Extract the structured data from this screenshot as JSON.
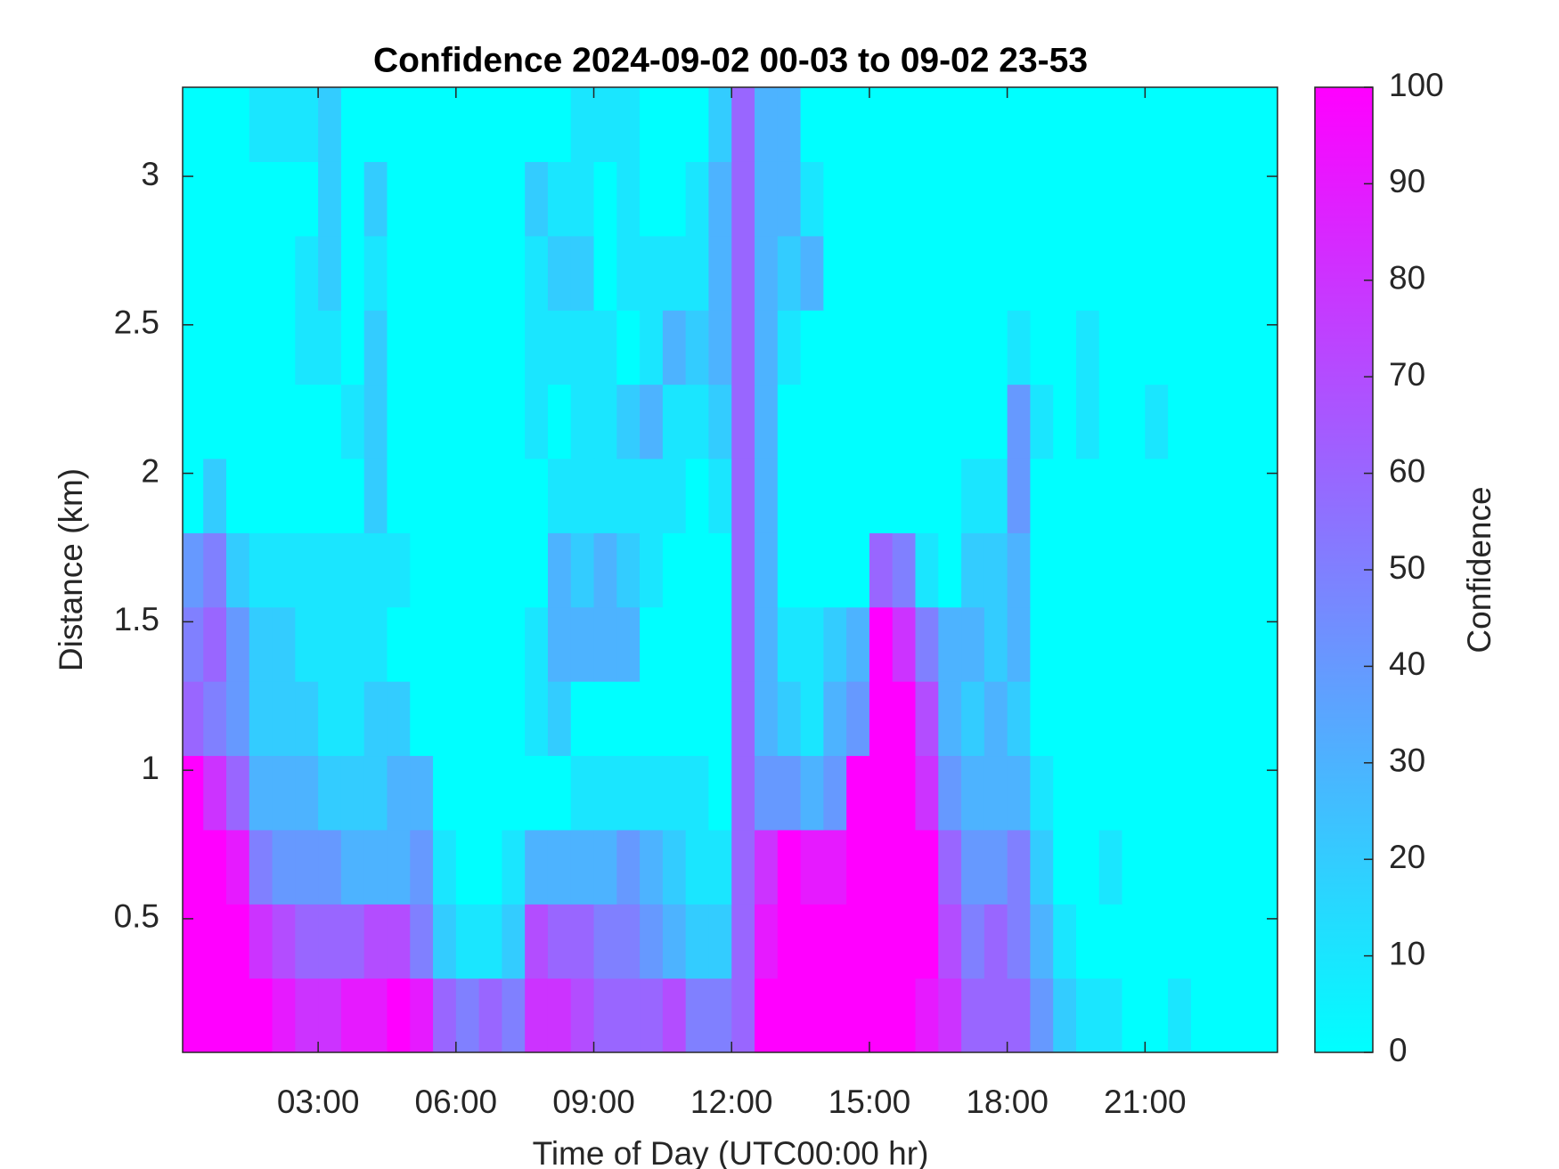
{
  "chart_data": {
    "type": "heatmap",
    "title": "Confidence 2024-09-02 00-03 to 09-02 23-53",
    "x_label": "Time of Day (UTC00:00 hr)",
    "y_label": "Distance (km)",
    "colorbar_label": "Confidence",
    "colormap": [
      "#00ffff",
      "#ff00ff"
    ],
    "clim": [
      0,
      100
    ],
    "cticks": [
      0,
      10,
      20,
      30,
      40,
      50,
      60,
      70,
      80,
      90,
      100
    ],
    "xlim": [
      0.05,
      23.883
    ],
    "ylim": [
      0.05,
      3.3
    ],
    "xticks": [
      {
        "value": 3,
        "label": "03:00"
      },
      {
        "value": 6,
        "label": "06:00"
      },
      {
        "value": 9,
        "label": "09:00"
      },
      {
        "value": 12,
        "label": "12:00"
      },
      {
        "value": 15,
        "label": "15:00"
      },
      {
        "value": 18,
        "label": "18:00"
      },
      {
        "value": 21,
        "label": "21:00"
      }
    ],
    "yticks": [
      0.5,
      1,
      1.5,
      2,
      2.5,
      3
    ],
    "x": [
      0.25,
      0.75,
      1.25,
      1.75,
      2.25,
      2.75,
      3.25,
      3.75,
      4.25,
      4.75,
      5.25,
      5.75,
      6.25,
      6.75,
      7.25,
      7.75,
      8.25,
      8.75,
      9.25,
      9.75,
      10.25,
      10.75,
      11.25,
      11.75,
      12.25,
      12.75,
      13.25,
      13.75,
      14.25,
      14.75,
      15.25,
      15.75,
      16.25,
      16.75,
      17.25,
      17.75,
      18.25,
      18.75,
      19.25,
      19.75,
      20.25,
      20.75,
      21.25,
      21.75,
      22.25,
      22.75,
      23.25,
      23.75
    ],
    "y": [
      0.175,
      0.425,
      0.675,
      0.925,
      1.175,
      1.425,
      1.675,
      1.925,
      2.175,
      2.425,
      2.675,
      2.925,
      3.175
    ],
    "z": [
      [
        100,
        100,
        100,
        100,
        90,
        80,
        80,
        90,
        90,
        100,
        90,
        60,
        50,
        60,
        50,
        80,
        80,
        70,
        60,
        60,
        60,
        70,
        50,
        50,
        60,
        100,
        100,
        100,
        100,
        100,
        100,
        100,
        90,
        80,
        60,
        60,
        60,
        40,
        20,
        10,
        10,
        0,
        0,
        10,
        0,
        0,
        0,
        0
      ],
      [
        100,
        100,
        100,
        80,
        70,
        60,
        60,
        60,
        70,
        70,
        50,
        20,
        10,
        10,
        20,
        70,
        60,
        60,
        50,
        50,
        40,
        30,
        20,
        20,
        60,
        90,
        100,
        100,
        100,
        100,
        100,
        100,
        100,
        70,
        50,
        60,
        50,
        30,
        10,
        0,
        0,
        0,
        0,
        0,
        0,
        0,
        0,
        0
      ],
      [
        100,
        100,
        90,
        50,
        40,
        40,
        40,
        30,
        30,
        30,
        40,
        10,
        0,
        0,
        10,
        30,
        30,
        30,
        30,
        40,
        30,
        20,
        10,
        10,
        60,
        80,
        100,
        90,
        90,
        100,
        100,
        100,
        100,
        60,
        40,
        40,
        50,
        20,
        0,
        0,
        10,
        0,
        0,
        0,
        0,
        0,
        0,
        0
      ],
      [
        100,
        80,
        60,
        30,
        30,
        30,
        20,
        20,
        20,
        30,
        30,
        0,
        0,
        0,
        0,
        0,
        0,
        10,
        10,
        10,
        10,
        10,
        10,
        0,
        60,
        40,
        40,
        30,
        40,
        100,
        100,
        100,
        80,
        40,
        30,
        30,
        30,
        10,
        0,
        0,
        0,
        0,
        0,
        0,
        0,
        0,
        0,
        0
      ],
      [
        60,
        50,
        40,
        20,
        20,
        20,
        10,
        10,
        20,
        20,
        0,
        0,
        0,
        0,
        0,
        10,
        20,
        0,
        0,
        0,
        0,
        0,
        0,
        0,
        60,
        30,
        20,
        10,
        30,
        40,
        100,
        100,
        70,
        30,
        20,
        30,
        20,
        0,
        0,
        0,
        0,
        0,
        0,
        0,
        0,
        0,
        0,
        0
      ],
      [
        50,
        60,
        40,
        20,
        20,
        10,
        10,
        10,
        10,
        0,
        0,
        0,
        0,
        0,
        0,
        10,
        30,
        30,
        30,
        30,
        0,
        0,
        0,
        0,
        60,
        30,
        10,
        10,
        20,
        30,
        100,
        80,
        50,
        30,
        30,
        20,
        30,
        0,
        0,
        0,
        0,
        0,
        0,
        0,
        0,
        0,
        0,
        0
      ],
      [
        40,
        50,
        20,
        10,
        10,
        10,
        10,
        10,
        10,
        10,
        0,
        0,
        0,
        0,
        0,
        0,
        30,
        20,
        30,
        20,
        10,
        0,
        0,
        0,
        60,
        30,
        0,
        0,
        0,
        0,
        60,
        50,
        10,
        0,
        20,
        20,
        30,
        0,
        0,
        0,
        0,
        0,
        0,
        0,
        0,
        0,
        0,
        0
      ],
      [
        0,
        20,
        0,
        0,
        0,
        0,
        0,
        0,
        20,
        0,
        0,
        0,
        0,
        0,
        0,
        0,
        10,
        10,
        10,
        10,
        10,
        10,
        0,
        10,
        60,
        30,
        0,
        0,
        0,
        0,
        0,
        0,
        0,
        0,
        10,
        10,
        40,
        0,
        0,
        0,
        0,
        0,
        0,
        0,
        0,
        0,
        0,
        0
      ],
      [
        0,
        0,
        0,
        0,
        0,
        0,
        0,
        10,
        20,
        0,
        0,
        0,
        0,
        0,
        0,
        10,
        0,
        10,
        10,
        20,
        30,
        10,
        10,
        20,
        60,
        30,
        0,
        0,
        0,
        0,
        0,
        0,
        0,
        0,
        0,
        0,
        40,
        10,
        0,
        10,
        0,
        0,
        10,
        0,
        0,
        0,
        0,
        0
      ],
      [
        0,
        0,
        0,
        0,
        0,
        10,
        10,
        0,
        20,
        0,
        0,
        0,
        0,
        0,
        0,
        10,
        10,
        10,
        10,
        0,
        10,
        30,
        20,
        30,
        60,
        30,
        10,
        0,
        0,
        0,
        0,
        0,
        0,
        0,
        0,
        0,
        10,
        0,
        0,
        10,
        0,
        0,
        0,
        0,
        0,
        0,
        0,
        0
      ],
      [
        0,
        0,
        0,
        0,
        0,
        10,
        20,
        0,
        10,
        0,
        0,
        0,
        0,
        0,
        0,
        10,
        20,
        20,
        0,
        10,
        10,
        10,
        10,
        30,
        60,
        30,
        20,
        30,
        0,
        0,
        0,
        0,
        0,
        0,
        0,
        0,
        0,
        0,
        0,
        0,
        0,
        0,
        0,
        0,
        0,
        0,
        0,
        0
      ],
      [
        0,
        0,
        0,
        0,
        0,
        0,
        20,
        0,
        20,
        0,
        0,
        0,
        0,
        0,
        0,
        20,
        10,
        10,
        0,
        10,
        0,
        0,
        10,
        30,
        60,
        30,
        30,
        10,
        0,
        0,
        0,
        0,
        0,
        0,
        0,
        0,
        0,
        0,
        0,
        0,
        0,
        0,
        0,
        0,
        0,
        0,
        0,
        0
      ],
      [
        0,
        0,
        0,
        10,
        10,
        10,
        20,
        0,
        0,
        0,
        0,
        0,
        0,
        0,
        0,
        0,
        0,
        10,
        10,
        10,
        0,
        0,
        0,
        20,
        60,
        30,
        30,
        0,
        0,
        0,
        0,
        0,
        0,
        0,
        0,
        0,
        0,
        0,
        0,
        0,
        0,
        0,
        0,
        0,
        0,
        0,
        0,
        0
      ]
    ]
  }
}
